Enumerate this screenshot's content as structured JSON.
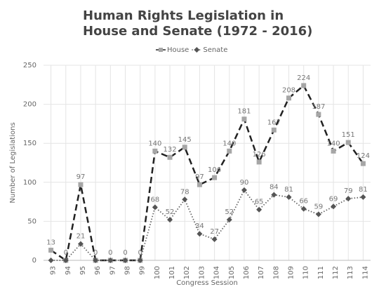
{
  "chart_data": {
    "type": "line",
    "title": [
      "Human Rights Legislation in",
      "House and Senate (1972 - 2016)"
    ],
    "x_label": "Congress Session",
    "y_label": "Number of Legislations",
    "categories": [
      "93",
      "94",
      "95",
      "96",
      "97",
      "98",
      "99",
      "100",
      "101",
      "102",
      "103",
      "104",
      "105",
      "106",
      "107",
      "108",
      "109",
      "110",
      "111",
      "112",
      "113",
      "114"
    ],
    "series": [
      {
        "name": "House",
        "color": "#222222",
        "marker_color": "#a6a6a6",
        "values": [
          13,
          0,
          97,
          0,
          0,
          0,
          0,
          140,
          132,
          145,
          97,
          106,
          140,
          181,
          126,
          167,
          208,
          224,
          187,
          140,
          151,
          124
        ]
      },
      {
        "name": "Senate",
        "color": "#666666",
        "marker_color": "#555555",
        "values": [
          0,
          0,
          21,
          0,
          0,
          0,
          0,
          68,
          52,
          78,
          34,
          27,
          52,
          90,
          65,
          84,
          81,
          66,
          59,
          69,
          79,
          81
        ]
      }
    ],
    "ylim": [
      0,
      250
    ],
    "yticks": [
      0,
      50,
      100,
      150,
      200,
      250
    ],
    "grid": true,
    "legend": "top"
  }
}
